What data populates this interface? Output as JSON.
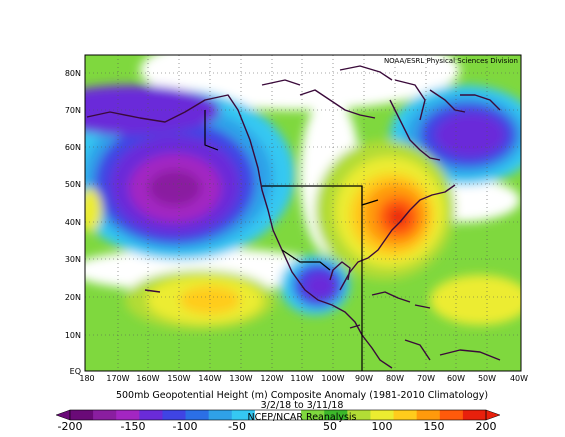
{
  "map": {
    "credit": "NOAA/ESRL Physical Sciences Division",
    "title": "500mb Geopotential Height (m) Composite Anomaly (1981-2010 Climatology)",
    "date_range": "3/2/18 to 3/11/18",
    "reanalysis": "NCEP/NCAR Reanalysis",
    "lat_ticks": [
      "EQ",
      "10N",
      "20N",
      "30N",
      "40N",
      "50N",
      "60N",
      "70N",
      "80N"
    ],
    "lon_ticks": [
      "180",
      "170W",
      "160W",
      "150W",
      "140W",
      "130W",
      "120W",
      "110W",
      "100W",
      "90W",
      "80W",
      "70W",
      "60W",
      "50W",
      "40W"
    ],
    "colorbar": {
      "labels": [
        "-200",
        "-150",
        "-100",
        "-50",
        "50",
        "100",
        "150",
        "200"
      ],
      "colors": [
        "#6a0a78",
        "#8a1ea0",
        "#a326c2",
        "#6a2bd9",
        "#3f44e4",
        "#2b6fe6",
        "#2fa1e8",
        "#35c8f2",
        "#ffffff",
        "#ffffff",
        "#7fd83e",
        "#3cb82a",
        "#b2dc35",
        "#ecec30",
        "#ffcc1c",
        "#ff9a0c",
        "#ff5a0b",
        "#e8200c"
      ]
    },
    "anomaly_centers": [
      {
        "name": "negative-centre-northeast-pacific",
        "value": -150
      },
      {
        "name": "negative-centre-north-atlantic",
        "value": -150
      },
      {
        "name": "negative-centre-gulf-of-mexico",
        "value": -100
      },
      {
        "name": "positive-centre-eastern-us",
        "value": 200
      },
      {
        "name": "positive-centre-subtropical-pacific",
        "value": 100
      }
    ]
  }
}
